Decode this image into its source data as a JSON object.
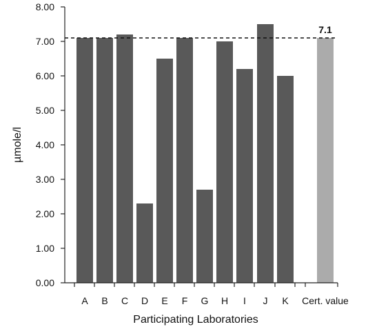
{
  "chart_data": {
    "type": "bar",
    "categories": [
      "A",
      "B",
      "C",
      "D",
      "E",
      "F",
      "G",
      "H",
      "I",
      "J",
      "K",
      "Cert. value"
    ],
    "values": [
      7.1,
      7.1,
      7.2,
      2.3,
      6.5,
      7.1,
      2.7,
      7.0,
      6.2,
      7.5,
      6.0,
      7.1
    ],
    "xlabel": "Participating Laboratories",
    "ylabel": "µmole/l",
    "ylim": [
      0,
      8
    ],
    "yticks": [
      "0.00",
      "1.00",
      "2.00",
      "3.00",
      "4.00",
      "5.00",
      "6.00",
      "7.00",
      "8.00"
    ],
    "reference_line": {
      "value": 7.1,
      "label": "7.1",
      "style": "dashed"
    },
    "grid": false,
    "legend": "none",
    "colors": {
      "lab_bar": "#595959",
      "cert_bar": "#ababab",
      "axis": "#222222"
    }
  }
}
